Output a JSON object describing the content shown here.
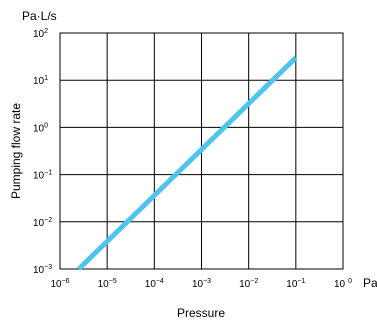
{
  "chart_data": {
    "type": "line",
    "title": "",
    "xlabel": "Pressure",
    "ylabel": "Pumping flow rate",
    "x_unit": "Pa",
    "y_unit": "Pa·L/s",
    "x_scale": "log",
    "y_scale": "log",
    "xlim": [
      1e-06,
      1
    ],
    "ylim": [
      0.001,
      100
    ],
    "grid": true,
    "x_ticks": [
      {
        "base": "10",
        "exp": "−6",
        "value": 1e-06
      },
      {
        "base": "10",
        "exp": "−5",
        "value": 1e-05
      },
      {
        "base": "10",
        "exp": "−4",
        "value": 0.0001
      },
      {
        "base": "10",
        "exp": "−3",
        "value": 0.001
      },
      {
        "base": "10",
        "exp": "−2",
        "value": 0.01
      },
      {
        "base": "10",
        "exp": "−1",
        "value": 0.1
      },
      {
        "base": "10",
        "exp": "0",
        "value": 1
      }
    ],
    "y_ticks": [
      {
        "base": "10",
        "exp": "2",
        "value": 100
      },
      {
        "base": "10",
        "exp": "1",
        "value": 10
      },
      {
        "base": "10",
        "exp": "0",
        "value": 1
      },
      {
        "base": "10",
        "exp": "−1",
        "value": 0.1
      },
      {
        "base": "10",
        "exp": "−2",
        "value": 0.01
      },
      {
        "base": "10",
        "exp": "−3",
        "value": 0.001
      }
    ],
    "series": [
      {
        "color": "#4ec3ee",
        "x": [
          2.5e-06,
          0.1
        ],
        "y": [
          0.001,
          30
        ]
      }
    ]
  }
}
